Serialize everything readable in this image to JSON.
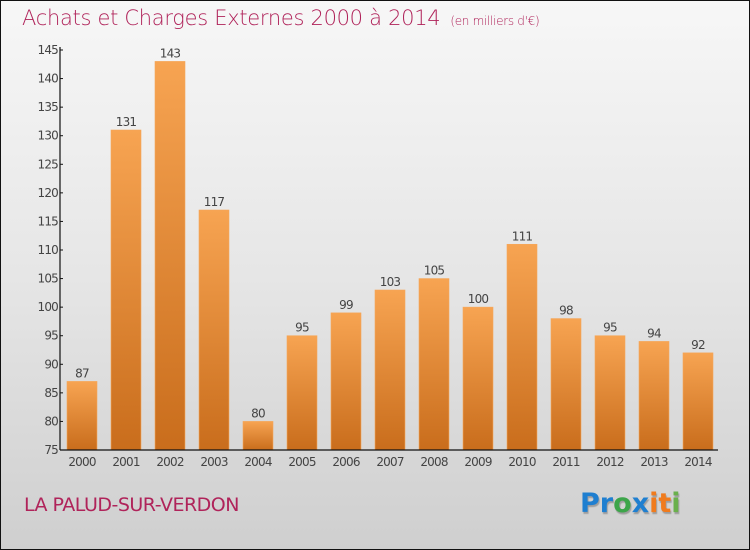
{
  "header": {
    "title": "Achats et Charges Externes 2000 à 2014",
    "unit": "(en milliers d'€)"
  },
  "footer": {
    "commune": "LA PALUD-SUR-VERDON",
    "logo_letters": [
      {
        "ch": "P",
        "color": "#1f7fd0"
      },
      {
        "ch": "r",
        "color": "#1f7fd0"
      },
      {
        "ch": "o",
        "color": "#3da54a"
      },
      {
        "ch": "x",
        "color": "#1f7fd0"
      },
      {
        "ch": "i",
        "color": "#f07b1d"
      },
      {
        "ch": "t",
        "color": "#f07b1d"
      },
      {
        "ch": "i",
        "color": "#6ab04c"
      }
    ]
  },
  "colors": {
    "bar_top": "#f7a452",
    "bar_bottom": "#c96d1c",
    "title": "#b0235a"
  },
  "chart_data": {
    "type": "bar",
    "title": "Achats et Charges Externes 2000 à 2014 (en milliers d'€)",
    "xlabel": "",
    "ylabel": "",
    "categories": [
      "2000",
      "2001",
      "2002",
      "2003",
      "2004",
      "2005",
      "2006",
      "2007",
      "2008",
      "2009",
      "2010",
      "2011",
      "2012",
      "2013",
      "2014"
    ],
    "values": [
      87,
      131,
      143,
      117,
      80,
      95,
      99,
      103,
      105,
      100,
      111,
      98,
      95,
      94,
      92
    ],
    "ylim": [
      75,
      145
    ],
    "yticks": [
      75,
      80,
      85,
      90,
      95,
      100,
      105,
      110,
      115,
      120,
      125,
      130,
      135,
      140,
      145
    ],
    "grid": false,
    "legend": "none",
    "data_labels": true
  }
}
